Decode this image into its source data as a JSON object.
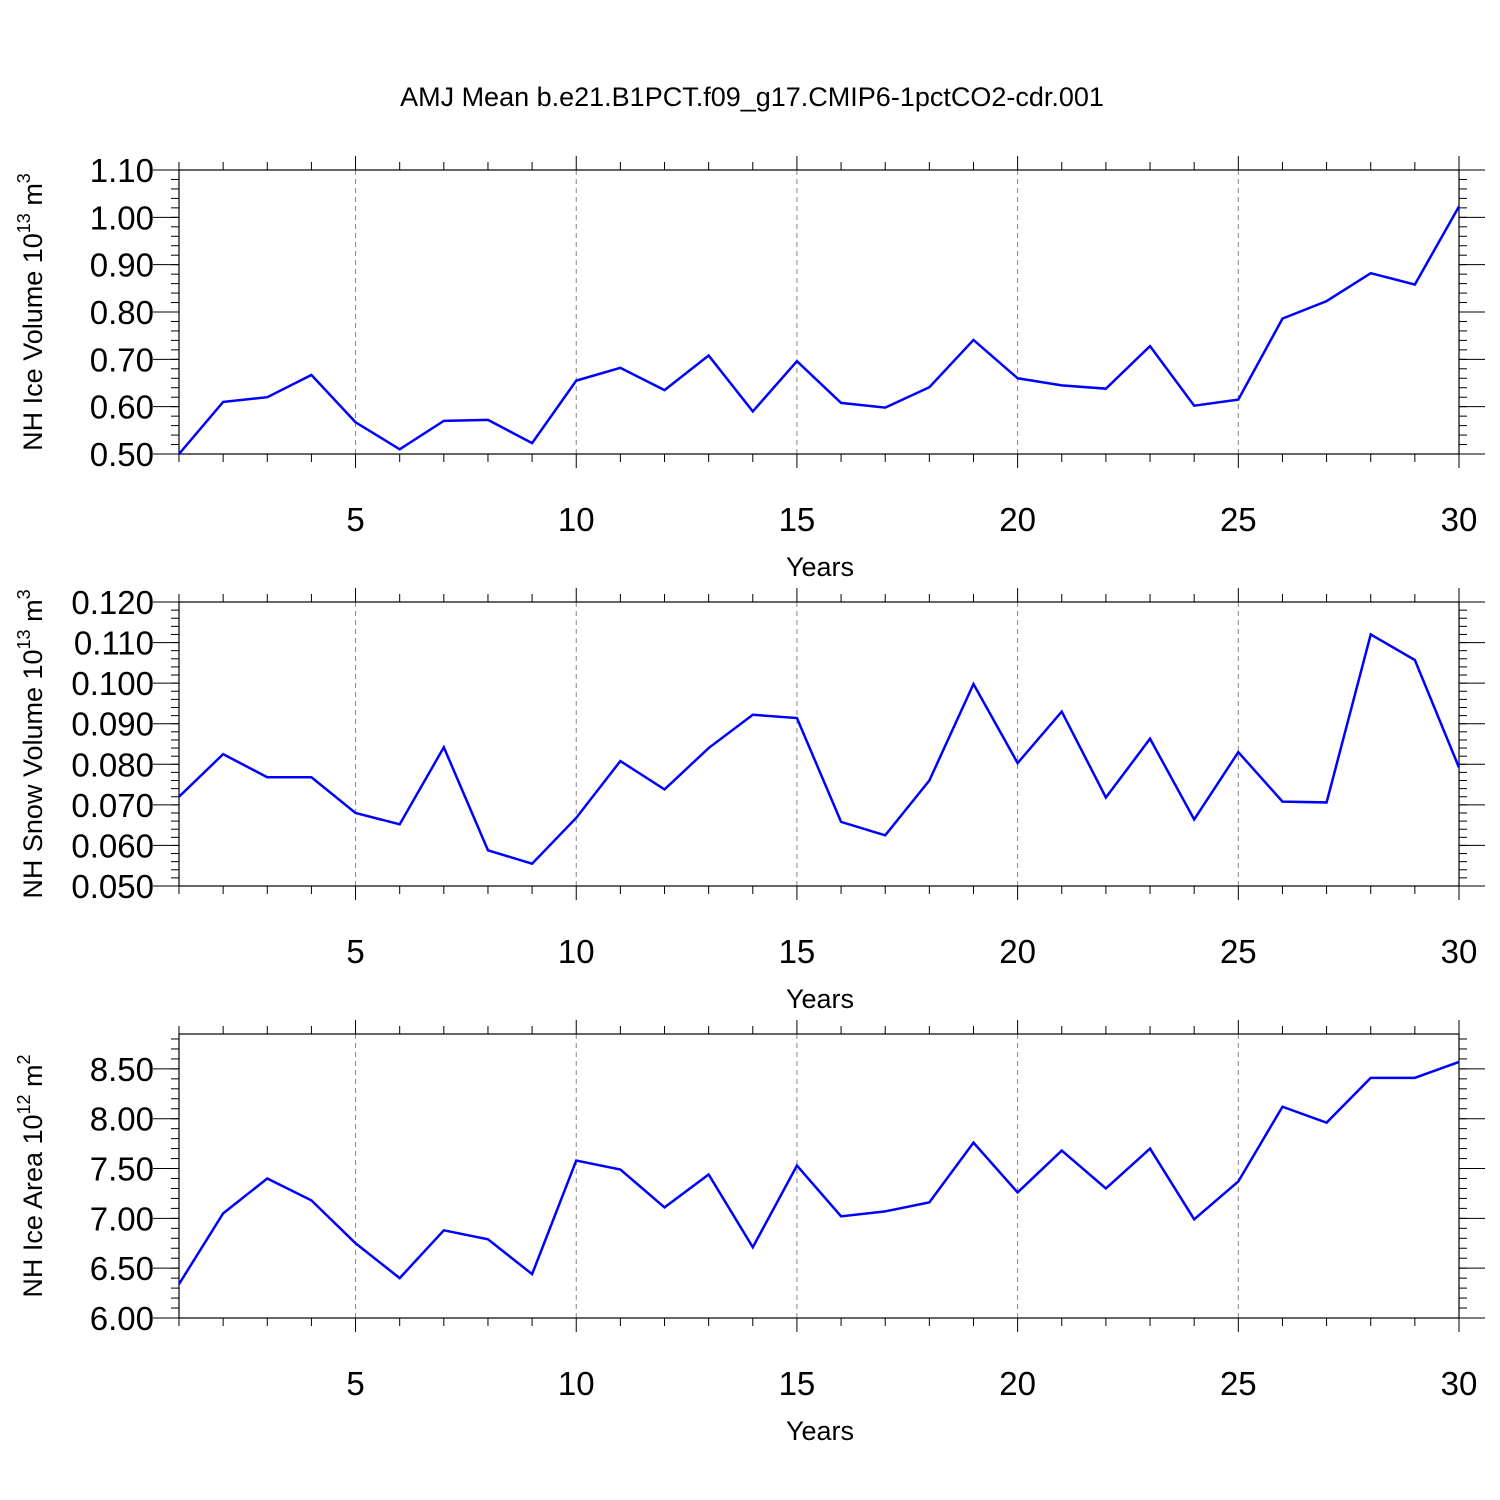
{
  "figure_title": "AMJ Mean b.e21.B1PCT.f09_g17.CMIP6-1pctCO2-cdr.001",
  "colors": {
    "line": "#0000ff",
    "axes": "#000000",
    "grid": "#888888"
  },
  "chart_data": [
    {
      "type": "line",
      "title": "",
      "xlabel": "Years",
      "ylabel": "NH Ice Volume 10",
      "ylabel_exp": "13",
      "ylabel_unit": " m",
      "ylabel_unit_exp": "3",
      "xlim": [
        1,
        30
      ],
      "ylim": [
        0.5,
        1.1
      ],
      "xticks": [
        "5",
        "10",
        "15",
        "20",
        "25",
        "30"
      ],
      "yticks": [
        "0.50",
        "0.60",
        "0.70",
        "0.80",
        "0.90",
        "1.00",
        "1.10"
      ],
      "grid": "vertical-dashed",
      "x": [
        1,
        2,
        3,
        4,
        5,
        6,
        7,
        8,
        9,
        10,
        11,
        12,
        13,
        14,
        15,
        16,
        17,
        18,
        19,
        20,
        21,
        22,
        23,
        24,
        25,
        26,
        27,
        28,
        29,
        30
      ],
      "series": [
        {
          "values": [
            0.5,
            0.61,
            0.62,
            0.667,
            0.567,
            0.51,
            0.57,
            0.572,
            0.523,
            0.655,
            0.682,
            0.635,
            0.708,
            0.59,
            0.696,
            0.608,
            0.598,
            0.641,
            0.741,
            0.66,
            0.645,
            0.638,
            0.728,
            0.602,
            0.615,
            0.786,
            0.823,
            0.882,
            0.858,
            1.023
          ]
        }
      ]
    },
    {
      "type": "line",
      "title": "",
      "xlabel": "Years",
      "ylabel": "NH Snow Volume 10",
      "ylabel_exp": "13",
      "ylabel_unit": " m",
      "ylabel_unit_exp": "3",
      "xlim": [
        1,
        30
      ],
      "ylim": [
        0.05,
        0.12
      ],
      "xticks": [
        "5",
        "10",
        "15",
        "20",
        "25",
        "30"
      ],
      "yticks": [
        "0.050",
        "0.060",
        "0.070",
        "0.080",
        "0.090",
        "0.100",
        "0.110",
        "0.120"
      ],
      "grid": "vertical-dashed",
      "x": [
        1,
        2,
        3,
        4,
        5,
        6,
        7,
        8,
        9,
        10,
        11,
        12,
        13,
        14,
        15,
        16,
        17,
        18,
        19,
        20,
        21,
        22,
        23,
        24,
        25,
        26,
        27,
        28,
        29,
        30
      ],
      "series": [
        {
          "values": [
            0.072,
            0.0825,
            0.0768,
            0.0768,
            0.068,
            0.0652,
            0.0842,
            0.0588,
            0.0555,
            0.0668,
            0.0808,
            0.0738,
            0.084,
            0.0922,
            0.0914,
            0.0658,
            0.0625,
            0.076,
            0.0998,
            0.0803,
            0.093,
            0.0718,
            0.0863,
            0.0664,
            0.083,
            0.0708,
            0.0706,
            0.112,
            0.1057,
            0.0792
          ]
        }
      ]
    },
    {
      "type": "line",
      "title": "",
      "xlabel": "Years",
      "ylabel": "NH Ice Area 10",
      "ylabel_exp": "12",
      "ylabel_unit": " m",
      "ylabel_unit_exp": "2",
      "xlim": [
        1,
        30
      ],
      "ylim": [
        6.0,
        8.85
      ],
      "xticks": [
        "5",
        "10",
        "15",
        "20",
        "25",
        "30"
      ],
      "yticks": [
        "6.00",
        "6.50",
        "7.00",
        "7.50",
        "8.00",
        "8.50"
      ],
      "grid": "vertical-dashed",
      "x": [
        1,
        2,
        3,
        4,
        5,
        6,
        7,
        8,
        9,
        10,
        11,
        12,
        13,
        14,
        15,
        16,
        17,
        18,
        19,
        20,
        21,
        22,
        23,
        24,
        25,
        26,
        27,
        28,
        29,
        30
      ],
      "series": [
        {
          "values": [
            6.34,
            7.05,
            7.4,
            7.18,
            6.75,
            6.4,
            6.88,
            6.79,
            6.44,
            7.58,
            7.49,
            7.11,
            7.44,
            6.71,
            7.53,
            7.02,
            7.07,
            7.16,
            7.76,
            7.26,
            7.68,
            7.3,
            7.7,
            6.99,
            7.37,
            8.12,
            7.96,
            8.41,
            8.41,
            8.57
          ]
        }
      ]
    }
  ]
}
